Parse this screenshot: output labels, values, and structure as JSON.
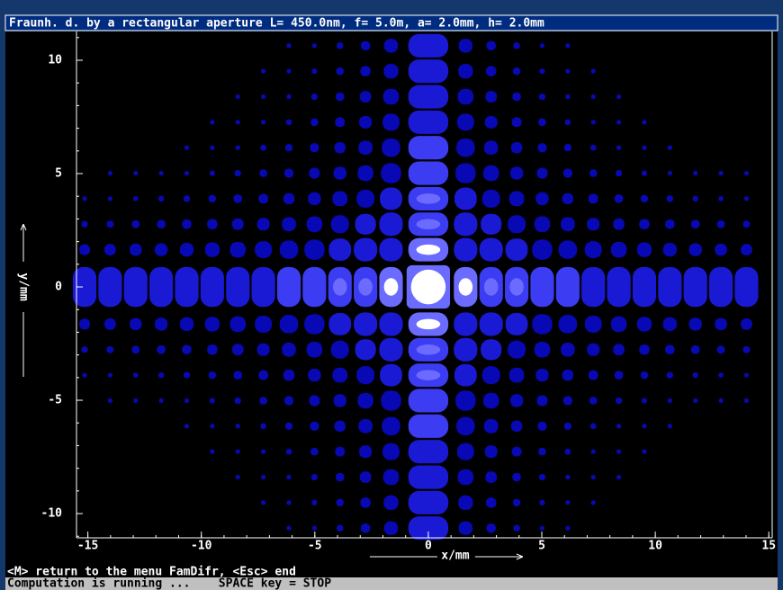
{
  "title": "Fraunh. d. by a rectangular aperture L= 450.0nm, f= 5.0m, a= 2.0mm, h= 2.0mm",
  "plot": {
    "x_label": "x/mm",
    "y_label": "y/mm",
    "xlim": [
      -15.5,
      15.15
    ],
    "ylim": [
      -11.07,
      11.27
    ],
    "xticks": [
      -15,
      -10,
      -5,
      0,
      5,
      10,
      15
    ],
    "yticks": [
      10,
      5,
      0,
      -5,
      -10
    ]
  },
  "status": [
    "<M> return to the menu FamDifr, <Esc> end",
    "Computation is running ...    SPACE key = STOP"
  ]
}
